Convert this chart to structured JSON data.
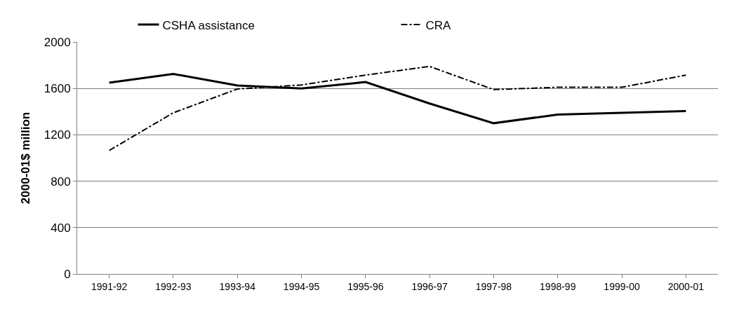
{
  "chart_data": {
    "type": "line",
    "ylabel": "2000-01$ million",
    "categories": [
      "1991-92",
      "1992-93",
      "1993-94",
      "1994-95",
      "1995-96",
      "1996-97",
      "1997-98",
      "1998-99",
      "1999-00",
      "2000-01"
    ],
    "series": [
      {
        "name": "CSHA assistance",
        "color": "#000000",
        "line_style": "solid",
        "values": [
          1650,
          1725,
          1625,
          1600,
          1655,
          1470,
          1300,
          1375,
          1390,
          1405
        ]
      },
      {
        "name": "CRA",
        "color": "#000000",
        "line_style": "dashdot",
        "values": [
          1065,
          1390,
          1595,
          1630,
          1715,
          1790,
          1590,
          1610,
          1610,
          1715
        ]
      }
    ],
    "ylim": [
      0,
      2000
    ],
    "yticks": [
      0,
      400,
      800,
      1200,
      1600,
      2000
    ],
    "grid": "y",
    "legend": "top",
    "marker": "none"
  }
}
